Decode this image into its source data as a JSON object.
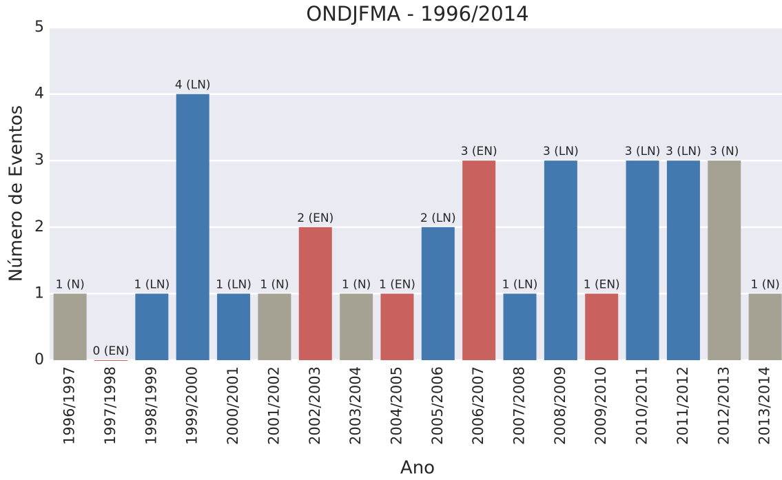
{
  "chart_data": {
    "type": "bar",
    "title": "ONDJFMA - 1996/2014",
    "x_label": "Ano",
    "y_label": "Número de Eventos",
    "categories": [
      "1996/1997",
      "1997/1998",
      "1998/1999",
      "1999/2000",
      "2000/2001",
      "2001/2002",
      "2002/2003",
      "2003/2004",
      "2004/2005",
      "2005/2006",
      "2006/2007",
      "2007/2008",
      "2008/2009",
      "2009/2010",
      "2010/2011",
      "2011/2012",
      "2012/2013",
      "2013/2014"
    ],
    "values": [
      1,
      0,
      1,
      4,
      1,
      1,
      2,
      1,
      1,
      2,
      3,
      1,
      3,
      1,
      3,
      3,
      3,
      1
    ],
    "value_labels": [
      "1 (N)",
      "0 (EN)",
      "1 (LN)",
      "4 (LN)",
      "1 (LN)",
      "1 (N)",
      "2 (EN)",
      "1 (N)",
      "1 (EN)",
      "2 (LN)",
      "3 (EN)",
      "1 (LN)",
      "3 (LN)",
      "1 (EN)",
      "3 (LN)",
      "3 (LN)",
      "3 (N)",
      "1 (N)"
    ],
    "colors": [
      "#a5a294",
      "#c9625e",
      "#4479b0",
      "#4479b0",
      "#4479b0",
      "#a5a294",
      "#c9625e",
      "#a5a294",
      "#c9625e",
      "#4479b0",
      "#c9625e",
      "#4479b0",
      "#4479b0",
      "#c9625e",
      "#4479b0",
      "#4479b0",
      "#a5a294",
      "#a5a294"
    ],
    "ylim": [
      0,
      5
    ],
    "yticks": [
      0,
      1,
      2,
      3,
      4,
      5
    ],
    "grid": true
  }
}
